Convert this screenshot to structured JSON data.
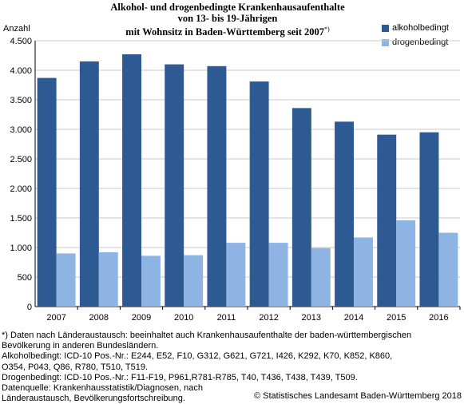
{
  "chart_data": {
    "type": "bar",
    "title": [
      "Alkohol- und drogenbedingte Krankenhausaufenthalte",
      "von 13- bis 19-Jährigen",
      "mit Wohnsitz in Baden-Württemberg seit 2007"
    ],
    "title_sup": "*)",
    "ylabel": "Anzahl",
    "categories": [
      "2007",
      "2008",
      "2009",
      "2010",
      "2011",
      "2012",
      "2013",
      "2014",
      "2015",
      "2016"
    ],
    "ylim": [
      0,
      4500
    ],
    "yticks": [
      0,
      500,
      1000,
      1500,
      2000,
      2500,
      3000,
      3500,
      4000,
      4500
    ],
    "ytick_labels": [
      "0",
      "500",
      "1.000",
      "1.500",
      "2.000",
      "2.500",
      "3.000",
      "3.500",
      "4.000",
      "4.500"
    ],
    "grid": true,
    "legend_position": "top-right",
    "series": [
      {
        "name": "alkoholbedingt",
        "color": "#2e5a93",
        "values": [
          3870,
          4150,
          4270,
          4100,
          4070,
          3810,
          3360,
          3130,
          2910,
          2950
        ]
      },
      {
        "name": "drogenbedingt",
        "color": "#8db4e3",
        "values": [
          900,
          920,
          860,
          870,
          1080,
          1080,
          990,
          1170,
          1460,
          1250
        ]
      }
    ]
  },
  "footnotes": [
    "*) Daten nach Länderaustausch: beeinhaltet auch Krankenhausaufenthalte der baden-württembergischen",
    "Bevölkerung in anderen Bundesländern.",
    "Alkoholbedingt: ICD-10 Pos.-Nr.: E244, E52, F10, G312, G621, G721, I426, K292, K70, K852, K860,",
    "O354, P043, Q86, R780, T510, T519.",
    "Drogenbedingt: ICD-10 Pos.-Nr.: F11-F19, P961,R781-R785, T40, T436, T438, T439, T509.",
    "Datenquelle: Krankenhausstatistik/Diagnosen, nach",
    "Länderaustausch, Bevölkerungsfortschreibung."
  ],
  "copyright": "© Statistisches Landesamt Baden-Württemberg 2018"
}
